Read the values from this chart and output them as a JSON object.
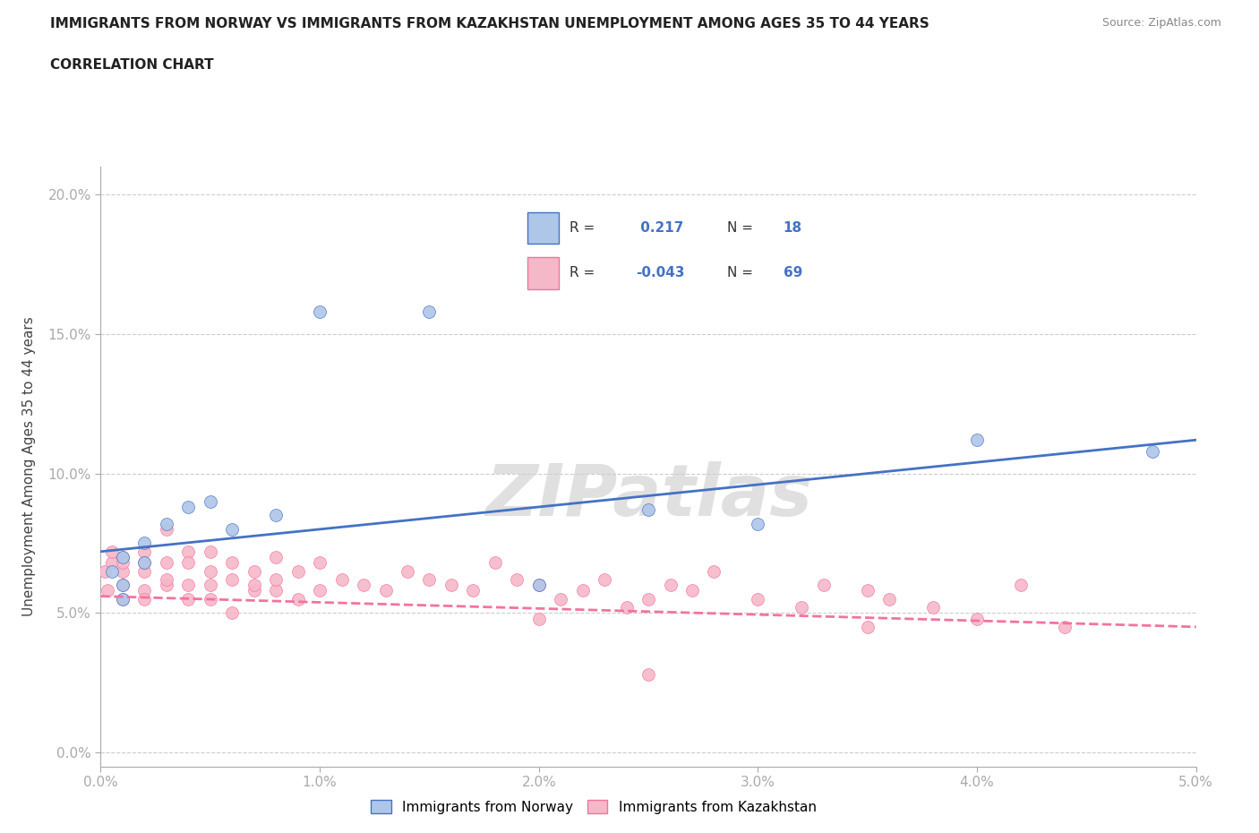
{
  "title_line1": "IMMIGRANTS FROM NORWAY VS IMMIGRANTS FROM KAZAKHSTAN UNEMPLOYMENT AMONG AGES 35 TO 44 YEARS",
  "title_line2": "CORRELATION CHART",
  "source": "Source: ZipAtlas.com",
  "ylabel": "Unemployment Among Ages 35 to 44 years",
  "xlim": [
    0.0,
    0.05
  ],
  "ylim": [
    -0.005,
    0.21
  ],
  "xticks": [
    0.0,
    0.01,
    0.02,
    0.03,
    0.04,
    0.05
  ],
  "yticks": [
    0.0,
    0.05,
    0.1,
    0.15,
    0.2
  ],
  "ytick_labels": [
    "0.0%",
    "5.0%",
    "10.0%",
    "15.0%",
    "20.0%"
  ],
  "xtick_labels": [
    "0.0%",
    "1.0%",
    "2.0%",
    "3.0%",
    "4.0%",
    "5.0%"
  ],
  "norway_R": 0.217,
  "norway_N": 18,
  "kazakhstan_R": -0.043,
  "kazakhstan_N": 69,
  "norway_color": "#aec6e8",
  "kazakhstan_color": "#f5b8c8",
  "norway_line_color": "#4472c4",
  "kazakhstan_line_color": "#f472a0",
  "watermark": "ZIPatlas",
  "norway_x": [
    0.0005,
    0.001,
    0.001,
    0.001,
    0.002,
    0.002,
    0.003,
    0.004,
    0.005,
    0.006,
    0.008,
    0.01,
    0.015,
    0.02,
    0.025,
    0.03,
    0.04,
    0.048
  ],
  "norway_y": [
    0.065,
    0.07,
    0.06,
    0.055,
    0.075,
    0.068,
    0.082,
    0.088,
    0.09,
    0.08,
    0.085,
    0.158,
    0.158,
    0.06,
    0.087,
    0.082,
    0.112,
    0.108
  ],
  "kazakhstan_x": [
    0.0002,
    0.0003,
    0.0005,
    0.0005,
    0.001,
    0.001,
    0.001,
    0.001,
    0.001,
    0.002,
    0.002,
    0.002,
    0.002,
    0.002,
    0.003,
    0.003,
    0.003,
    0.003,
    0.004,
    0.004,
    0.004,
    0.004,
    0.005,
    0.005,
    0.005,
    0.005,
    0.006,
    0.006,
    0.006,
    0.007,
    0.007,
    0.007,
    0.008,
    0.008,
    0.008,
    0.009,
    0.009,
    0.01,
    0.01,
    0.011,
    0.012,
    0.013,
    0.014,
    0.015,
    0.016,
    0.017,
    0.018,
    0.019,
    0.02,
    0.021,
    0.022,
    0.023,
    0.024,
    0.025,
    0.026,
    0.027,
    0.028,
    0.03,
    0.032,
    0.033,
    0.035,
    0.036,
    0.038,
    0.04,
    0.042,
    0.044,
    0.02,
    0.025,
    0.035
  ],
  "kazakhstan_y": [
    0.065,
    0.058,
    0.068,
    0.072,
    0.06,
    0.055,
    0.07,
    0.065,
    0.068,
    0.058,
    0.065,
    0.072,
    0.055,
    0.068,
    0.06,
    0.062,
    0.068,
    0.08,
    0.06,
    0.072,
    0.055,
    0.068,
    0.06,
    0.065,
    0.055,
    0.072,
    0.062,
    0.068,
    0.05,
    0.058,
    0.065,
    0.06,
    0.058,
    0.07,
    0.062,
    0.055,
    0.065,
    0.058,
    0.068,
    0.062,
    0.06,
    0.058,
    0.065,
    0.062,
    0.06,
    0.058,
    0.068,
    0.062,
    0.06,
    0.055,
    0.058,
    0.062,
    0.052,
    0.055,
    0.06,
    0.058,
    0.065,
    0.055,
    0.052,
    0.06,
    0.058,
    0.055,
    0.052,
    0.048,
    0.06,
    0.045,
    0.048,
    0.028,
    0.045
  ],
  "norway_trend_x": [
    0.0,
    0.05
  ],
  "norway_trend_y": [
    0.072,
    0.112
  ],
  "kazakhstan_trend_x": [
    0.0,
    0.05
  ],
  "kazakhstan_trend_y": [
    0.056,
    0.045
  ]
}
